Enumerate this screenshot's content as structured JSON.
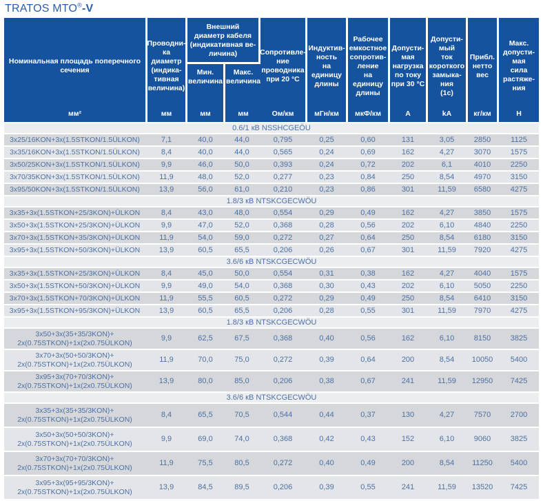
{
  "title": {
    "main": "TRATOS MTO",
    "reg": "®",
    "suffix": "-V"
  },
  "colors": {
    "header_bg": "#16539e",
    "header_text": "#ffffff",
    "title_text": "#2b5ca8",
    "cell_text": "#4c70a4",
    "row_dark": "#d5d7da",
    "row_light": "#e3e5e8",
    "section_bg": "#ecedef"
  },
  "table": {
    "header": {
      "col1": {
        "label": "Номинальная площадь поперечного\nсечения",
        "unit": "мм²"
      },
      "col2": {
        "label": "Проводни-\nка\nдиаметр\n(индика-\nтивная\nвеличина)",
        "unit": "мм"
      },
      "col3": {
        "label": "Внешний\nдиаметр кабеля\n(индикативная ве-\nличина)",
        "sub_min": {
          "label": "Мин.\nвеличина",
          "unit": "мм"
        },
        "sub_max": {
          "label": "Макс.\nвеличина",
          "unit": "мм"
        }
      },
      "col4": {
        "label": "Сопротивле-\nние\nпроводника\nпри 20 °C",
        "unit": "Ом/км"
      },
      "col5": {
        "label": "Индуктив-\nность\nна единицу\nдлины",
        "unit": "мГн/км"
      },
      "col6": {
        "label": "Рабочее\nемкостное\nсопротив-\nление\nна единицу\nдлины",
        "unit": "мкФ/км"
      },
      "col7": {
        "label": "Допусти-\nмая\nнагрузка\nпо току\nпри 30 °C",
        "unit": "A"
      },
      "col8": {
        "label": "Допусти-\nмый\nток\nкороткого\nзамыка-\nния\n(1с)",
        "unit": "kA"
      },
      "col9": {
        "label": "Прибл.\nнетто\nвес",
        "unit": "кг/км"
      },
      "col10": {
        "label": "Макс.\nдопусти-\nмая\nсила\nрастяже-\nния",
        "unit": "H"
      }
    },
    "sections": [
      {
        "title": "0.6/1 кВ NSSHCGEÖU",
        "rows": [
          {
            "name": "3x25/16KON+3x(1.5STKON/1.5ÜLKON)",
            "values": [
              "7,1",
              "40,0",
              "44,0",
              "0,795",
              "0,25",
              "0,60",
              "131",
              "3,05",
              "2850",
              "1125"
            ]
          },
          {
            "name": "3x35/16KON+3x(1.5STKON/1.5ÜLKON)",
            "values": [
              "8,4",
              "40,0",
              "44,0",
              "0,565",
              "0,24",
              "0,69",
              "162",
              "4,27",
              "3070",
              "1575"
            ]
          },
          {
            "name": "3x50/25KON+3x(1.5STKON/1.5ÜLKON)",
            "values": [
              "9,9",
              "46,0",
              "50,0",
              "0,393",
              "0,24",
              "0,72",
              "202",
              "6,1",
              "4010",
              "2250"
            ]
          },
          {
            "name": "3x70/35KON+3x(1.5STKON/1.5ÜLKON)",
            "values": [
              "11,9",
              "48,0",
              "52,0",
              "0,277",
              "0,23",
              "0,84",
              "250",
              "8,54",
              "4970",
              "3150"
            ]
          },
          {
            "name": "3x95/50KON+3x(1.5STKON/1.5ÜLKON)",
            "values": [
              "13,9",
              "56,0",
              "61,0",
              "0,210",
              "0,23",
              "0,86",
              "301",
              "11,59",
              "6580",
              "4275"
            ]
          }
        ]
      },
      {
        "title": "1.8/3 кВ NTSKCGECWÖU",
        "rows": [
          {
            "name": "3x35+3x(1.5STKON+25/3KON)+ÜLKON",
            "values": [
              "8,4",
              "43,0",
              "48,0",
              "0,554",
              "0,29",
              "0,49",
              "162",
              "4,27",
              "3850",
              "1575"
            ]
          },
          {
            "name": "3x50+3x(1.5STKON+25/3KON)+ÜLKON",
            "values": [
              "9,9",
              "47,0",
              "52,0",
              "0,368",
              "0,28",
              "0,56",
              "202",
              "6,10",
              "4840",
              "2250"
            ]
          },
          {
            "name": "3x70+3x(1.5STKON+35/3KON)+ÜLKON",
            "values": [
              "11,9",
              "54,0",
              "59,0",
              "0,272",
              "0,27",
              "0,64",
              "250",
              "8,54",
              "6180",
              "3150"
            ]
          },
          {
            "name": "3x95+3x(1.5STKON+50/3KON)+ÜLKON",
            "values": [
              "13,9",
              "60,5",
              "65,5",
              "0,206",
              "0,26",
              "0,67",
              "301",
              "11,59",
              "7920",
              "4275"
            ]
          }
        ]
      },
      {
        "title": "3.6/6 кВ NTSKCGECWÖU",
        "rows": [
          {
            "name": "3x35+3x(1.5STKON+25/3KON)+ÜLKON",
            "values": [
              "8,4",
              "45,0",
              "50,0",
              "0,554",
              "0,31",
              "0,38",
              "162",
              "4,27",
              "4040",
              "1575"
            ]
          },
          {
            "name": "3x50+3x(1.5STKON+50/3KON)+ÜLKON",
            "values": [
              "9,9",
              "49,0",
              "54,0",
              "0,368",
              "0,30",
              "0,43",
              "202",
              "6,10",
              "5050",
              "2250"
            ]
          },
          {
            "name": "3x70+3x(1.5STKON+70/3KON)+ÜLKON",
            "values": [
              "11,9",
              "55,5",
              "60,5",
              "0,272",
              "0,29",
              "0,49",
              "250",
              "8,54",
              "6410",
              "3150"
            ]
          },
          {
            "name": "3x95+3x(1.5STKON+95/3KON)+ÜLKON",
            "values": [
              "13,9",
              "60,5",
              "65,5",
              "0,206",
              "0,28",
              "0,55",
              "301",
              "11,59",
              "7970",
              "4275"
            ]
          }
        ]
      },
      {
        "title": "1.8/3 кВ NTSKCGECWÖU",
        "rows": [
          {
            "name": "3x50+3x(35+35/3KON)+\n2x(0.75STKON)+1x(2x0.75ÜLKON)",
            "values": [
              "9,9",
              "62,5",
              "67,5",
              "0,368",
              "0,40",
              "0,56",
              "162",
              "6,10",
              "8150",
              "3825"
            ]
          },
          {
            "name": "3x70+3x(50+50/3KON)+\n2x(0.75STKON)+1x(2x0.75ÜLKON)",
            "values": [
              "11,9",
              "70,0",
              "75,0",
              "0,272",
              "0,39",
              "0,64",
              "200",
              "8,54",
              "10050",
              "5400"
            ]
          },
          {
            "name": "3x95+3x(70+70/3KON)+\n2x(0.75STKON)+1x(2x0.75ÜLKON)",
            "values": [
              "13,9",
              "80,0",
              "85,0",
              "0,206",
              "0,38",
              "0,67",
              "241",
              "11,59",
              "12950",
              "7425"
            ]
          }
        ]
      },
      {
        "title": "3.6/6 кВ NTSKCGECWÖU",
        "rows": [
          {
            "name": "3x35+3x(35+35/3KON)+\n2x(0.75STKON)+1x(2x0.75ÜLKON)",
            "values": [
              "8,4",
              "65,5",
              "70,5",
              "0,544",
              "0,44",
              "0,37",
              "130",
              "4,27",
              "7570",
              "2700"
            ]
          },
          {
            "name": "3x50+3x(50+50/3KON)+\n2x(0.75STKON)+1x(2x0.75ÜLKON)",
            "values": [
              "9,9",
              "69,0",
              "74,0",
              "0,368",
              "0,42",
              "0,43",
              "152",
              "6,10",
              "9060",
              "3825"
            ]
          },
          {
            "name": "3x70+3x(70+70/3KON)+\n2x(0.75STKON)+1x(2x0.75ÜLKON)",
            "values": [
              "11,9",
              "75,5",
              "80,5",
              "0,272",
              "0,40",
              "0,49",
              "200",
              "8,54",
              "11250",
              "5400"
            ]
          },
          {
            "name": "3x95+3x(95+95/3KON)+\n2x(0.75STKON)+1x(2x0.75ÜLKON)",
            "values": [
              "13,9",
              "84,5",
              "89,5",
              "0,206",
              "0,39",
              "0,55",
              "241",
              "11,59",
              "13520",
              "7425"
            ]
          }
        ]
      }
    ]
  }
}
